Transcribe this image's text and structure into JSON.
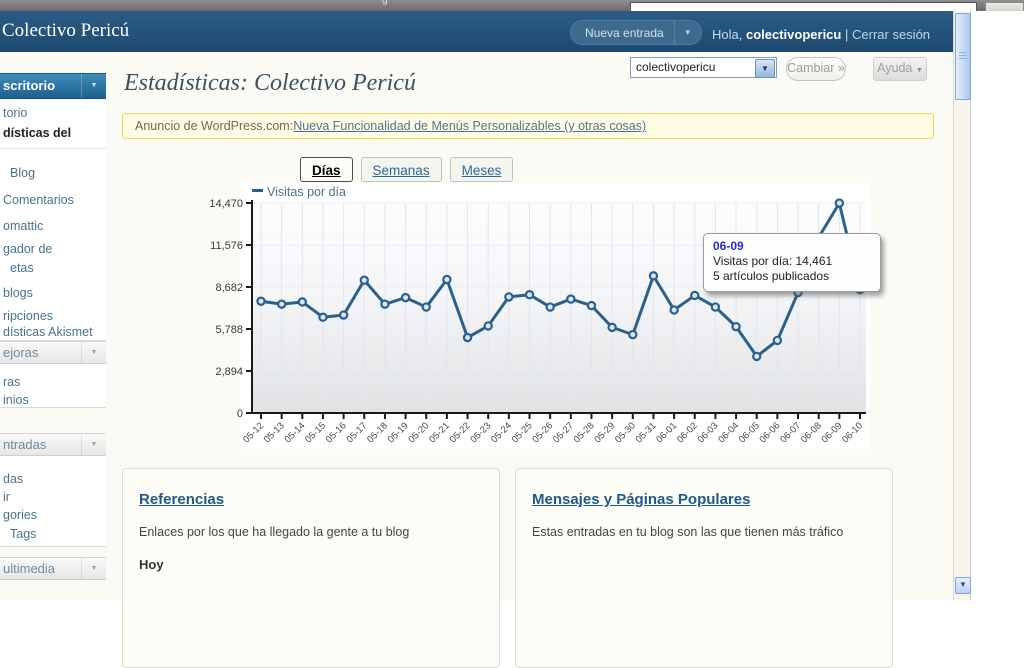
{
  "browser": {
    "text_fragment": "g"
  },
  "header": {
    "site_title": "Colectivo Pericú",
    "new_post_label": "Nueva entrada",
    "greeting_prefix": "Hola,",
    "username": "colectivopericu",
    "divider": "|",
    "logout_label": "Cerrar sesión"
  },
  "toolbar": {
    "blog_select_value": "colectivopericu",
    "change_label": "Cambiar »",
    "help_label": "Ayuda"
  },
  "sidebar": {
    "sections": [
      {
        "header": "scritorio",
        "active": true,
        "items": [
          {
            "label": "torio"
          },
          {
            "label": "dísticas del",
            "current": true
          },
          {
            "separator": true
          },
          {
            "label": "Blog",
            "indent": true
          },
          {
            "label": "Comentarios"
          },
          {
            "label": "omattic"
          },
          {
            "label": "gador de"
          },
          {
            "label": "etas",
            "indent": true
          },
          {
            "label": "blogs"
          },
          {
            "label": "ripciones"
          },
          {
            "label": "dísticas Akismet"
          }
        ]
      },
      {
        "header": "ejoras",
        "items": [
          {
            "label": "ras"
          },
          {
            "label": "inios"
          }
        ]
      },
      {
        "header": "ntradas",
        "items": [
          {
            "label": "das"
          },
          {
            "label": "ir"
          },
          {
            "label": "gories"
          },
          {
            "label": "Tags",
            "indent": true
          }
        ]
      },
      {
        "header": "ultimedia",
        "items": []
      }
    ]
  },
  "main": {
    "page_title": "Estadísticas: Colectivo Pericú",
    "notice": {
      "prefix": "Anuncio de WordPress.com:",
      "link_text": "Nueva Funcionalidad de Menús Personalizables (y otras cosas)"
    },
    "tabs": [
      {
        "label": "Días",
        "active": true
      },
      {
        "label": "Semanas",
        "active": false
      },
      {
        "label": "Meses",
        "active": false
      }
    ],
    "panels": [
      {
        "title": "Referencias",
        "description": "Enlaces por los que ha llegado la gente a tu blog",
        "subheading": "Hoy"
      },
      {
        "title": "Mensajes y Páginas Populares",
        "description": "Estas entradas en tu blog son las que tienen más tráfico"
      }
    ]
  },
  "chart_data": {
    "type": "line",
    "legend": "Visitas por día",
    "x": [
      "05-12",
      "05-13",
      "05-14",
      "05-15",
      "05-16",
      "05-17",
      "05-18",
      "05-19",
      "05-20",
      "05-21",
      "05-22",
      "05-23",
      "05-24",
      "05-25",
      "05-26",
      "05-27",
      "05-28",
      "05-29",
      "05-30",
      "05-31",
      "06-01",
      "06-02",
      "06-03",
      "06-04",
      "06-05",
      "06-06",
      "06-07",
      "06-08",
      "06-09",
      "06-10"
    ],
    "values": [
      7700,
      7500,
      7650,
      6600,
      6750,
      9150,
      7500,
      7950,
      7300,
      9200,
      5200,
      6000,
      8000,
      8150,
      7300,
      7850,
      7400,
      5900,
      5400,
      9450,
      7100,
      8100,
      7300,
      5950,
      3900,
      5000,
      8300,
      12100,
      14461,
      8500
    ],
    "ylim": [
      0,
      14470
    ],
    "y_ticks": [
      0,
      2894,
      5788,
      8682,
      11576,
      14470
    ],
    "y_tick_labels": [
      "0",
      "2,894",
      "5,788",
      "8,682",
      "11,576",
      "14,470"
    ],
    "grid": true,
    "legend_position": "top-left",
    "series_color": "#2a618c",
    "tooltip": {
      "title": "06-09",
      "line1": "Visitas por día: 14,461",
      "line2": "5 artículos publicados"
    }
  }
}
